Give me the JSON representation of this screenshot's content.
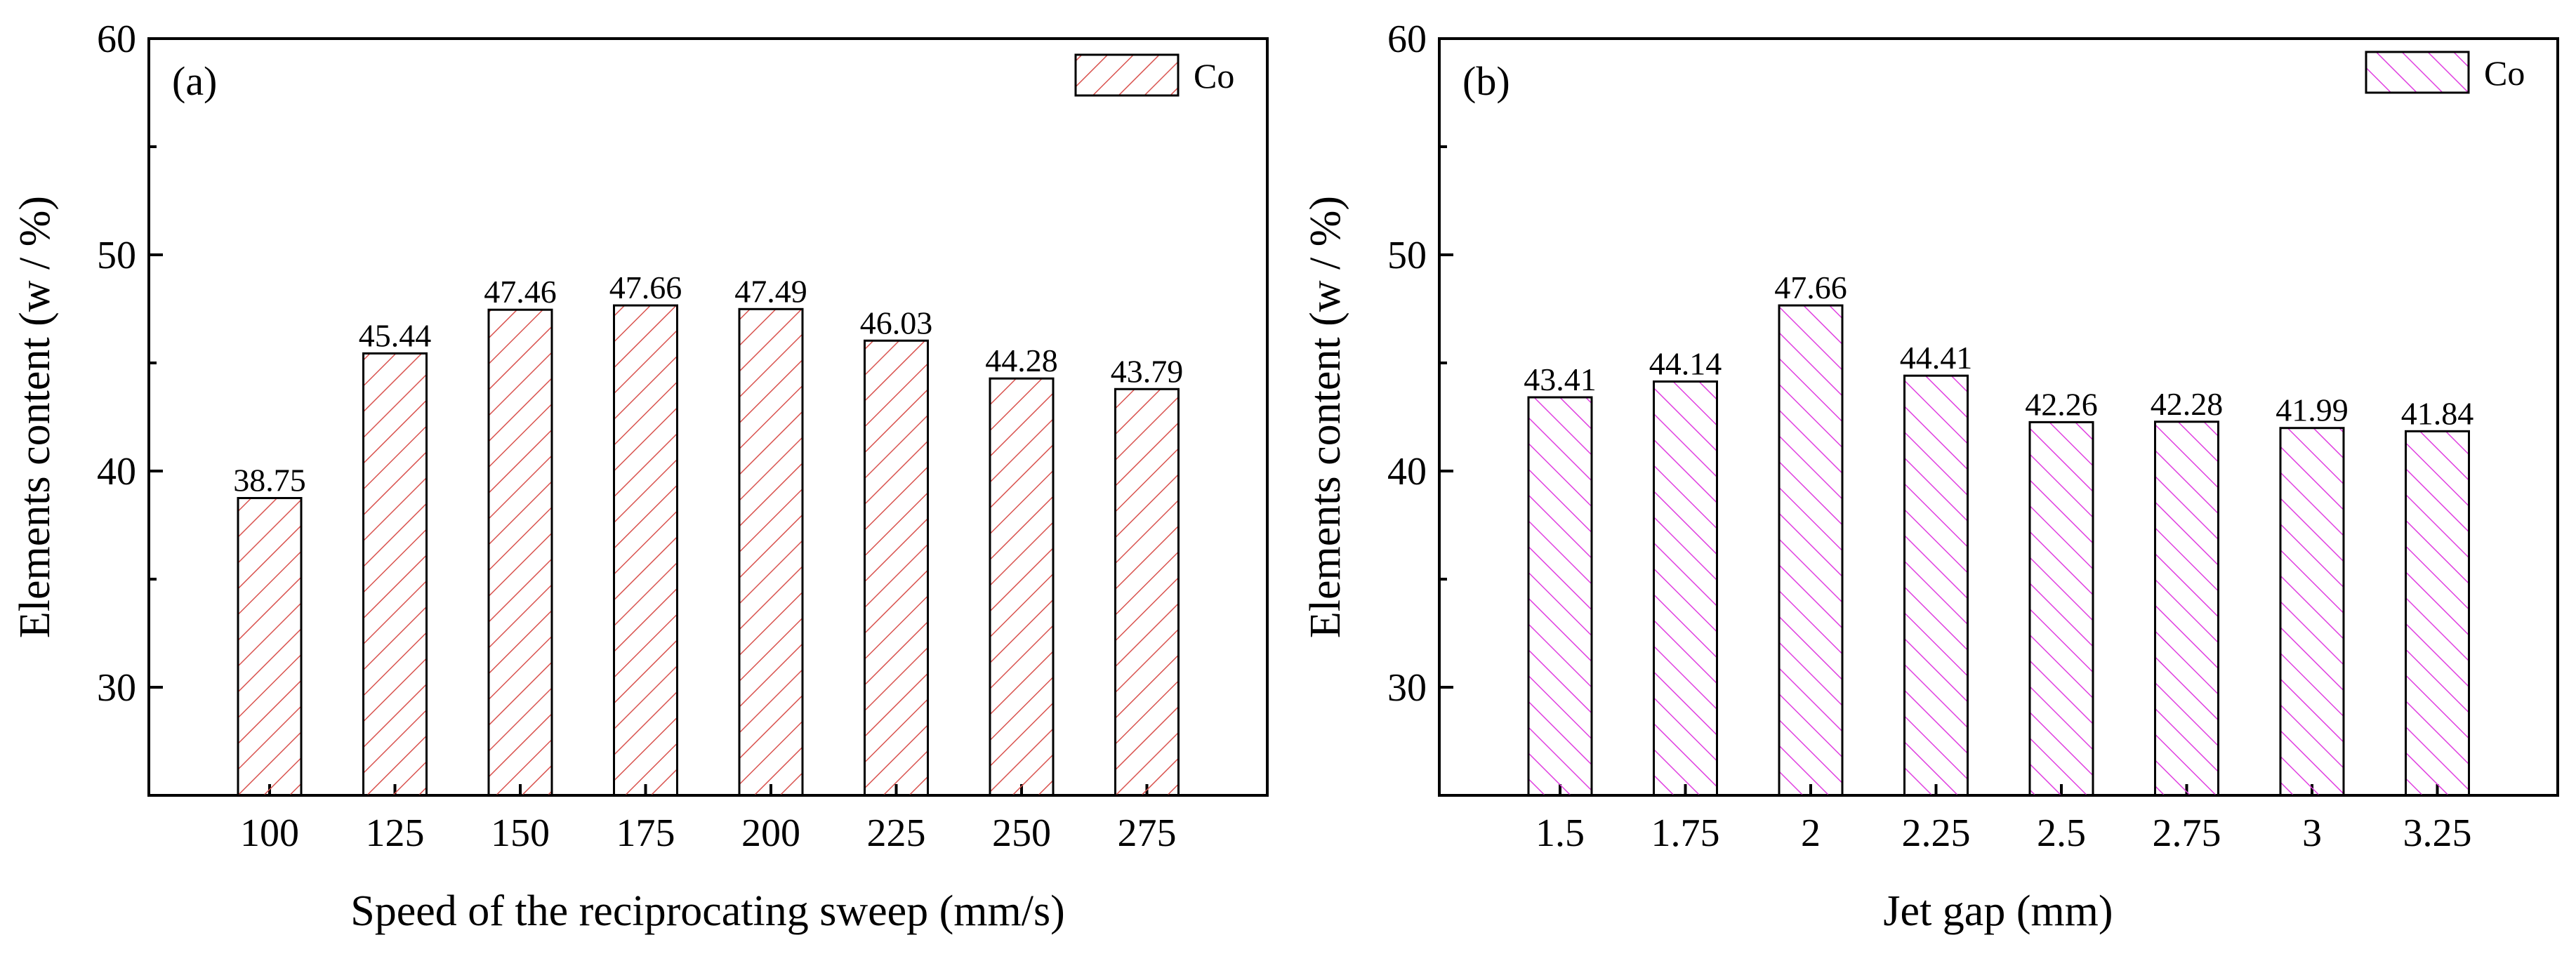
{
  "chart_data": [
    {
      "type": "bar",
      "panel_label": "(a)",
      "categories": [
        "100",
        "125",
        "150",
        "175",
        "200",
        "225",
        "250",
        "275"
      ],
      "series": [
        {
          "name": "Co",
          "values": [
            38.75,
            45.44,
            47.46,
            47.66,
            47.49,
            46.03,
            44.28,
            43.79
          ],
          "color": "#d9534f",
          "pattern": "hatch-forward"
        }
      ],
      "data_labels": [
        "38.75",
        "45.44",
        "47.46",
        "47.66",
        "47.49",
        "46.03",
        "44.28",
        "43.79"
      ],
      "xlabel": "Speed of the reciprocating sweep (mm/s)",
      "ylabel": "Elements content (w / %)",
      "ylim": [
        25,
        60
      ],
      "yticks": [
        30,
        40,
        50,
        60
      ],
      "legend_position": "top-right",
      "grid": false
    },
    {
      "type": "bar",
      "panel_label": "(b)",
      "categories": [
        "1.5",
        "1.75",
        "2",
        "2.25",
        "2.5",
        "2.75",
        "3",
        "3.25"
      ],
      "series": [
        {
          "name": "Co",
          "values": [
            43.41,
            44.14,
            47.66,
            44.41,
            42.26,
            42.28,
            41.99,
            41.84
          ],
          "color": "#e040e0",
          "pattern": "hatch-backward"
        }
      ],
      "data_labels": [
        "43.41",
        "44.14",
        "47.66",
        "44.41",
        "42.26",
        "42.28",
        "41.99",
        "41.84"
      ],
      "xlabel": "Jet gap (mm)",
      "ylabel": "Elements content (w / %)",
      "ylim": [
        25,
        60
      ],
      "yticks": [
        30,
        40,
        50,
        60
      ],
      "legend_position": "top-right",
      "grid": false
    }
  ]
}
